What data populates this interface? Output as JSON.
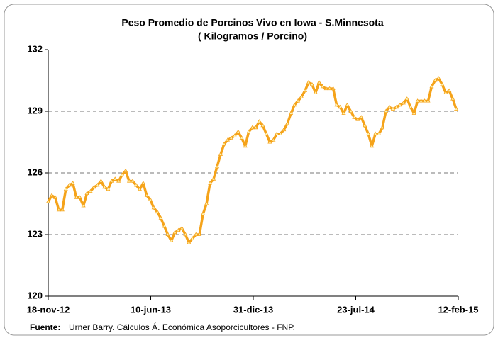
{
  "chart_data": {
    "type": "line",
    "title": "Peso Promedio de Porcinos Vivo en Iowa - S.Minnesota",
    "subtitle": "( Kilogramos / Porcino)",
    "source_label": "Fuente:",
    "source_text": "Urner Barry. Cálculos Á. Económica Asoporcicultores - FNP.",
    "x": [
      "2012-11-18",
      "2012-11-25",
      "2012-12-02",
      "2012-12-09",
      "2012-12-16",
      "2012-12-23",
      "2012-12-30",
      "2013-01-06",
      "2013-01-13",
      "2013-01-20",
      "2013-01-27",
      "2013-02-03",
      "2013-02-10",
      "2013-02-17",
      "2013-02-24",
      "2013-03-03",
      "2013-03-10",
      "2013-03-17",
      "2013-03-24",
      "2013-03-31",
      "2013-04-07",
      "2013-04-14",
      "2013-04-21",
      "2013-04-28",
      "2013-05-05",
      "2013-05-12",
      "2013-05-19",
      "2013-05-26",
      "2013-06-02",
      "2013-06-09",
      "2013-06-16",
      "2013-06-23",
      "2013-06-30",
      "2013-07-07",
      "2013-07-14",
      "2013-07-21",
      "2013-07-28",
      "2013-08-04",
      "2013-08-11",
      "2013-08-18",
      "2013-08-25",
      "2013-09-01",
      "2013-09-08",
      "2013-09-15",
      "2013-09-22",
      "2013-09-29",
      "2013-10-06",
      "2013-10-13",
      "2013-10-20",
      "2013-10-27",
      "2013-11-03",
      "2013-11-10",
      "2013-11-17",
      "2013-11-24",
      "2013-12-01",
      "2013-12-08",
      "2013-12-15",
      "2013-12-22",
      "2013-12-29",
      "2014-01-05",
      "2014-01-12",
      "2014-01-19",
      "2014-01-26",
      "2014-02-02",
      "2014-02-09",
      "2014-02-16",
      "2014-02-23",
      "2014-03-02",
      "2014-03-09",
      "2014-03-16",
      "2014-03-23",
      "2014-03-30",
      "2014-04-06",
      "2014-04-13",
      "2014-04-20",
      "2014-04-27",
      "2014-05-04",
      "2014-05-11",
      "2014-05-18",
      "2014-05-25",
      "2014-06-01",
      "2014-06-08",
      "2014-06-15",
      "2014-06-22",
      "2014-06-29",
      "2014-07-06",
      "2014-07-13",
      "2014-07-20",
      "2014-07-27",
      "2014-08-03",
      "2014-08-10",
      "2014-08-17",
      "2014-08-24",
      "2014-08-31",
      "2014-09-07",
      "2014-09-14",
      "2014-09-21",
      "2014-09-28",
      "2014-10-05",
      "2014-10-12",
      "2014-10-19",
      "2014-10-26",
      "2014-11-02",
      "2014-11-09",
      "2014-11-16",
      "2014-11-23",
      "2014-11-30",
      "2014-12-07",
      "2014-12-14",
      "2014-12-21",
      "2014-12-28",
      "2015-01-04",
      "2015-01-11",
      "2015-01-18",
      "2015-01-25",
      "2015-02-01",
      "2015-02-08"
    ],
    "series": [
      {
        "color": "#f5a31a",
        "values": [
          124.6,
          124.9,
          124.8,
          124.2,
          124.2,
          125.2,
          125.4,
          125.5,
          124.8,
          124.8,
          124.4,
          125.0,
          125.1,
          125.3,
          125.4,
          125.6,
          125.3,
          125.2,
          125.6,
          125.7,
          125.6,
          125.9,
          126.1,
          125.6,
          125.6,
          125.4,
          125.2,
          125.5,
          124.9,
          124.7,
          124.3,
          124.1,
          123.8,
          123.4,
          123.0,
          122.7,
          123.1,
          123.2,
          123.3,
          123.0,
          122.6,
          122.8,
          123.0,
          123.0,
          124.0,
          124.5,
          125.5,
          125.7,
          126.3,
          126.9,
          127.4,
          127.6,
          127.7,
          127.8,
          128.0,
          127.7,
          127.3,
          128.0,
          128.2,
          128.2,
          128.5,
          128.3,
          127.9,
          127.5,
          127.6,
          127.9,
          127.9,
          128.1,
          128.4,
          128.9,
          129.3,
          129.5,
          129.7,
          130.0,
          130.4,
          130.3,
          129.9,
          130.4,
          130.2,
          130.1,
          130.1,
          130.1,
          129.3,
          129.2,
          128.9,
          129.3,
          129.0,
          128.7,
          128.6,
          128.7,
          128.3,
          127.9,
          127.3,
          127.9,
          127.9,
          128.2,
          129.0,
          129.2,
          129.1,
          129.2,
          129.3,
          129.4,
          129.6,
          129.2,
          128.9,
          129.5,
          129.5,
          129.5,
          129.5,
          130.2,
          130.5,
          130.6,
          130.3,
          129.9,
          130.0,
          129.6,
          129.1
        ]
      }
    ],
    "xlim": [
      "2012-11-18",
      "2015-02-12"
    ],
    "xticks": [
      {
        "value": "2012-11-18",
        "label": "18-nov-12"
      },
      {
        "value": "2013-06-10",
        "label": "10-jun-13"
      },
      {
        "value": "2013-12-31",
        "label": "31-dic-13"
      },
      {
        "value": "2014-07-23",
        "label": "23-jul-14"
      },
      {
        "value": "2015-02-12",
        "label": "12-feb-15"
      }
    ],
    "ylim": [
      120,
      132
    ],
    "yticks": [
      120,
      123,
      126,
      129,
      132
    ],
    "grid": true
  }
}
